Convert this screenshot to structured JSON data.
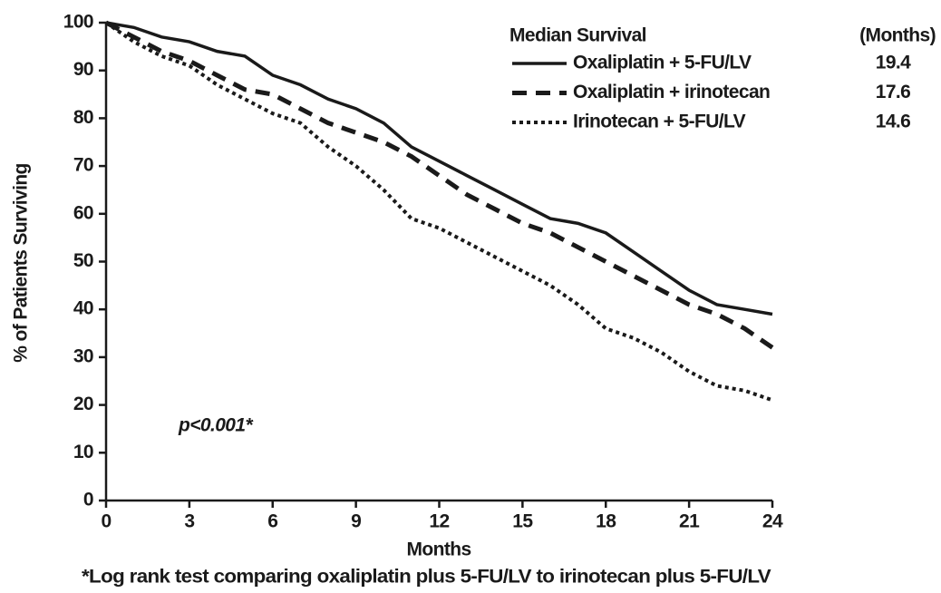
{
  "chart_data": {
    "type": "line",
    "y_label": "% of Patients Surviving",
    "x_label": "Months",
    "footnote": "*Log rank test comparing oxaliplatin plus 5-FU/LV to irinotecan plus 5-FU/LV",
    "annotation": "p<0.001*",
    "legend_title": "Median Survival",
    "legend_value_title": "(Months)",
    "x": [
      0,
      1,
      2,
      3,
      4,
      5,
      6,
      7,
      8,
      9,
      10,
      11,
      12,
      13,
      14,
      15,
      16,
      17,
      18,
      19,
      20,
      21,
      22,
      23,
      24
    ],
    "series": [
      {
        "name": "Oxaliplatin + 5-FU/LV",
        "color": "#1a1a1a",
        "linestyle": "solid",
        "median": 19.4,
        "values": [
          100,
          99,
          97,
          96,
          94,
          93,
          89,
          87,
          84,
          82,
          79,
          74,
          71,
          68,
          65,
          62,
          59,
          58,
          56,
          52,
          48,
          44,
          41,
          40,
          39
        ]
      },
      {
        "name": "Oxaliplatin + irinotecan",
        "color": "#1a1a1a",
        "linestyle": "dashed",
        "median": 17.6,
        "values": [
          100,
          97,
          94,
          92,
          89,
          86,
          85,
          82,
          79,
          77,
          75,
          72,
          68,
          64,
          61,
          58,
          56,
          53,
          50,
          47,
          44,
          41,
          39,
          36,
          32
        ]
      },
      {
        "name": "Irinotecan + 5-FU/LV",
        "color": "#1a1a1a",
        "linestyle": "dotted",
        "median": 14.6,
        "values": [
          100,
          96,
          93,
          91,
          87,
          84,
          81,
          79,
          74,
          70,
          65,
          59,
          57,
          54,
          51,
          48,
          45,
          41,
          36,
          34,
          31,
          27,
          24,
          23,
          21
        ]
      }
    ],
    "xlim": [
      0,
      24
    ],
    "xticks": [
      0,
      3,
      6,
      9,
      12,
      15,
      18,
      21,
      24
    ],
    "ylim": [
      0,
      100
    ],
    "yticks": [
      0,
      10,
      20,
      30,
      40,
      50,
      60,
      70,
      80,
      90,
      100
    ],
    "grid": false
  }
}
